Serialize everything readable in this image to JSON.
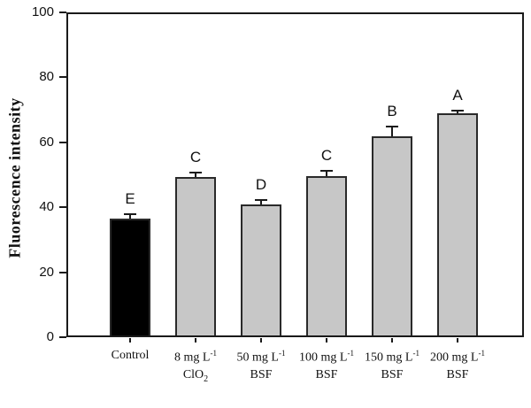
{
  "chart_data": {
    "type": "bar",
    "title": "",
    "xlabel": "",
    "ylabel": "Fluorescence intensity",
    "ylim": [
      0,
      100
    ],
    "yticks": [
      0,
      20,
      40,
      60,
      80,
      100
    ],
    "grid": false,
    "legend": "none",
    "categories": [
      {
        "line1": "Control",
        "sup1": "",
        "line2": "",
        "sub2": ""
      },
      {
        "line1": "8 mg L",
        "sup1": "-1",
        "line2": "ClO",
        "sub2": "2"
      },
      {
        "line1": "50 mg L",
        "sup1": "-1",
        "line2": "BSF",
        "sub2": ""
      },
      {
        "line1": "100 mg L",
        "sup1": "-1",
        "line2": "BSF",
        "sub2": ""
      },
      {
        "line1": "150 mg L",
        "sup1": "-1",
        "line2": "BSF",
        "sub2": ""
      },
      {
        "line1": "200 mg L",
        "sup1": "-1",
        "line2": "BSF",
        "sub2": ""
      }
    ],
    "values": [
      36.5,
      49.3,
      41.0,
      49.5,
      61.8,
      69.0
    ],
    "errors_upper": [
      1.3,
      1.5,
      1.3,
      1.8,
      3.0,
      0.8
    ],
    "significance_letters": [
      "E",
      "C",
      "D",
      "C",
      "B",
      "A"
    ],
    "bar_fill_colors": [
      "#000000",
      "#c7c7c7",
      "#c7c7c7",
      "#c7c7c7",
      "#c7c7c7",
      "#c7c7c7"
    ],
    "bar_border_color": "#2a2a2a",
    "axis_color": "#1a1a1a",
    "text_color": "#111111",
    "background_color": "#ffffff"
  }
}
